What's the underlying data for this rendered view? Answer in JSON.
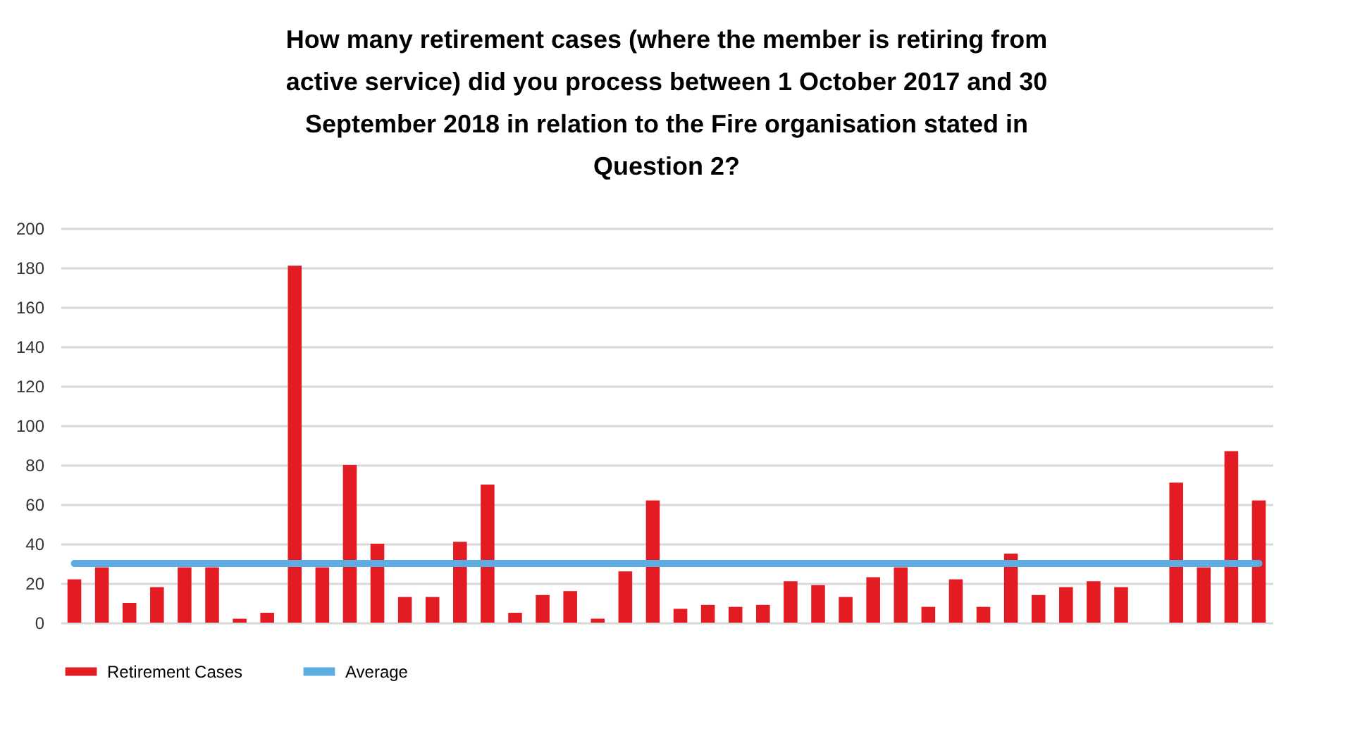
{
  "chart_data": {
    "type": "bar",
    "title": "How many retirement cases (where the member is retiring from active service) did you process between 1 October 2017 and 30 September 2018 in relation to the Fire organisation stated in Question 2?",
    "categories": [
      null,
      null,
      null,
      null,
      null,
      null,
      null,
      null,
      null,
      null,
      null,
      null,
      null,
      null,
      null,
      null,
      null,
      null,
      null,
      null,
      null,
      null,
      null,
      null,
      null,
      null,
      null,
      null,
      null,
      null,
      null,
      null,
      null,
      null,
      null,
      null,
      null,
      null,
      null,
      null,
      null,
      null,
      null,
      null
    ],
    "series": [
      {
        "name": "Retirement Cases",
        "color": "#e31b23",
        "values": [
          22,
          28,
          10,
          18,
          28,
          28,
          2,
          5,
          181,
          28,
          80,
          40,
          13,
          13,
          41,
          70,
          5,
          14,
          16,
          2,
          26,
          62,
          7,
          9,
          8,
          9,
          21,
          19,
          13,
          23,
          28,
          8,
          22,
          8,
          35,
          14,
          18,
          21,
          18,
          0,
          71,
          28,
          87,
          62
        ]
      },
      {
        "name": "Average",
        "type": "line",
        "color": "#5dade2",
        "values": [
          30,
          30,
          30,
          30,
          30,
          30,
          30,
          30,
          30,
          30,
          30,
          30,
          30,
          30,
          30,
          30,
          30,
          30,
          30,
          30,
          30,
          30,
          30,
          30,
          30,
          30,
          30,
          30,
          30,
          30,
          30,
          30,
          30,
          30,
          30,
          30,
          30,
          30,
          30,
          30,
          30,
          30,
          30,
          30
        ]
      }
    ],
    "ylim": [
      0,
      200
    ],
    "yticks": [
      0,
      20,
      40,
      60,
      80,
      100,
      120,
      140,
      160,
      180,
      200
    ],
    "grid": "y",
    "legend": "bottom",
    "marker": "none"
  }
}
